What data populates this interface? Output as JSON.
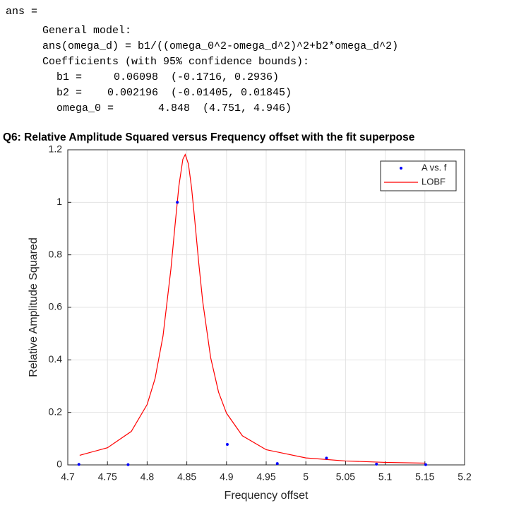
{
  "console": {
    "lines": [
      "ans =",
      "General model:",
      "ans(omega_d) = b1/((omega_0^2-omega_d^2)^2+b2*omega_d^2)",
      "Coefficients (with 95% confidence bounds):",
      "b1 =     0.06098  (-0.1716, 0.2936)",
      "b2 =    0.002196  (-0.01405, 0.01845)",
      "omega_0 =       4.848  (4.751, 4.946)"
    ]
  },
  "chart_data": {
    "type": "scatter",
    "title": "Q6: Relative Amplitude Squared versus Frequency offset with the fit superpose",
    "x_label": "Frequency offset",
    "y_label": "Relative Amplitude Squared",
    "xlim": [
      4.7,
      5.2
    ],
    "ylim": [
      0,
      1.2
    ],
    "xticks": [
      4.7,
      4.75,
      4.8,
      4.85,
      4.9,
      4.95,
      5,
      5.05,
      5.1,
      5.15,
      5.2
    ],
    "yticks": [
      0,
      0.2,
      0.4,
      0.6,
      0.8,
      1,
      1.2
    ],
    "grid": true,
    "legend": "upper-right",
    "series": [
      {
        "name": "A vs. f",
        "color": "#0000ff",
        "style": "points",
        "x": [
          4.714,
          4.776,
          4.838,
          4.901,
          4.964,
          5.026,
          5.089,
          5.151
        ],
        "values": [
          0.002,
          0.001,
          1.0,
          0.078,
          0.005,
          0.026,
          0.003,
          0.001
        ]
      },
      {
        "name": "LOBF",
        "color": "#ff0000",
        "style": "line",
        "x": [
          4.715,
          4.75,
          4.78,
          4.8,
          4.81,
          4.82,
          4.83,
          4.835,
          4.84,
          4.845,
          4.848,
          4.852,
          4.856,
          4.86,
          4.865,
          4.87,
          4.88,
          4.89,
          4.9,
          4.92,
          4.95,
          5.0,
          5.05,
          5.1,
          5.15
        ],
        "values": [
          0.0366,
          0.0653,
          0.1274,
          0.23,
          0.329,
          0.491,
          0.747,
          0.908,
          1.062,
          1.164,
          1.182,
          1.146,
          1.055,
          0.932,
          0.77,
          0.623,
          0.409,
          0.277,
          0.197,
          0.111,
          0.0579,
          0.0266,
          0.015,
          0.00962,
          0.00665
        ]
      }
    ]
  }
}
